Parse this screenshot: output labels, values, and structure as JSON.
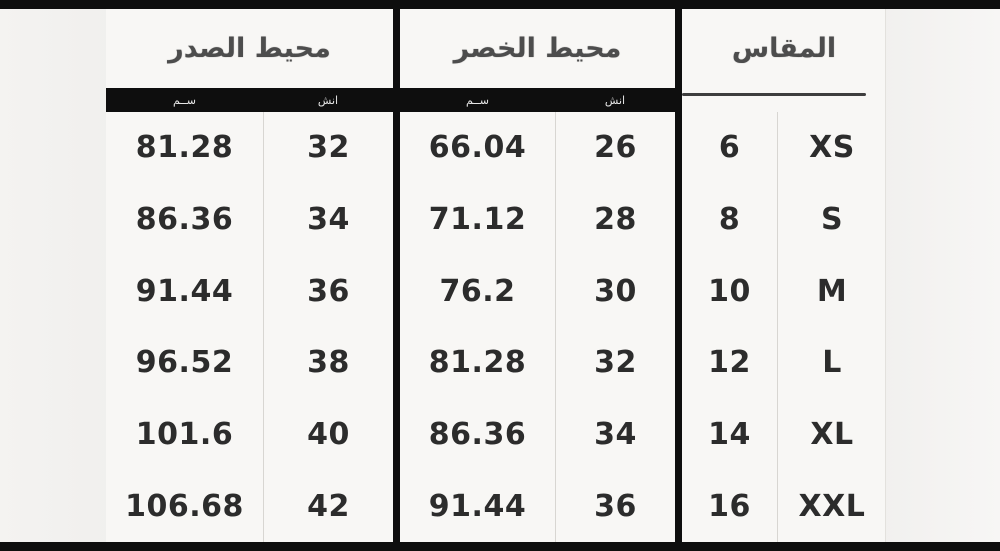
{
  "colors": {
    "page_bg": "#f1f0ee",
    "table_bg": "#f8f7f5",
    "bar": "#0e0e0e",
    "header_text": "#4d4d4d",
    "data_text": "#2c2c2c"
  },
  "headers": {
    "chest": "محيط الصدر",
    "waist": "محيط الخصر",
    "size": "المقاس"
  },
  "units": {
    "cm": "ســم",
    "inch": "انش"
  },
  "chart_data": {
    "type": "table",
    "columns": [
      "chest_cm",
      "chest_in",
      "waist_cm",
      "waist_in",
      "size_num",
      "size_label"
    ],
    "rows": [
      {
        "chest_cm": "81.28",
        "chest_in": "32",
        "waist_cm": "66.04",
        "waist_in": "26",
        "size_num": "6",
        "size_label": "XS"
      },
      {
        "chest_cm": "86.36",
        "chest_in": "34",
        "waist_cm": "71.12",
        "waist_in": "28",
        "size_num": "8",
        "size_label": "S"
      },
      {
        "chest_cm": "91.44",
        "chest_in": "36",
        "waist_cm": "76.2",
        "waist_in": "30",
        "size_num": "10",
        "size_label": "M"
      },
      {
        "chest_cm": "96.52",
        "chest_in": "38",
        "waist_cm": "81.28",
        "waist_in": "32",
        "size_num": "12",
        "size_label": "L"
      },
      {
        "chest_cm": "101.6",
        "chest_in": "40",
        "waist_cm": "86.36",
        "waist_in": "34",
        "size_num": "14",
        "size_label": "XL"
      },
      {
        "chest_cm": "106.68",
        "chest_in": "42",
        "waist_cm": "91.44",
        "waist_in": "36",
        "size_num": "16",
        "size_label": "XXL"
      }
    ]
  }
}
